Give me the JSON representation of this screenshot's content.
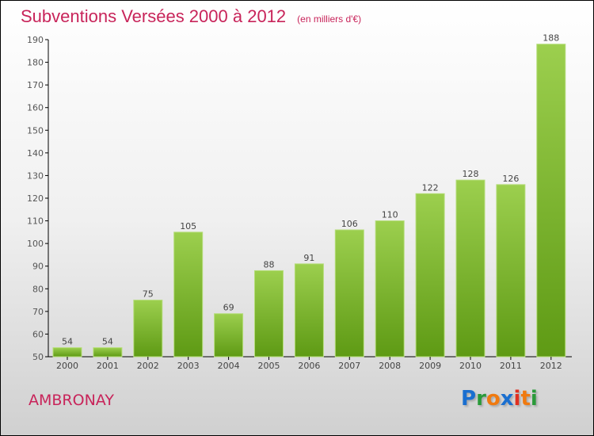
{
  "chart_data": {
    "type": "bar",
    "title": "Subventions Versées 2000 à 2012",
    "unit": "(en milliers d'€)",
    "categories": [
      "2000",
      "2001",
      "2002",
      "2003",
      "2004",
      "2005",
      "2006",
      "2007",
      "2008",
      "2009",
      "2010",
      "2011",
      "2012"
    ],
    "values": [
      54,
      54,
      75,
      105,
      69,
      88,
      91,
      106,
      110,
      122,
      128,
      126,
      188
    ],
    "ylim": [
      50,
      190
    ],
    "yticks": [
      50,
      60,
      70,
      80,
      90,
      100,
      110,
      120,
      130,
      140,
      150,
      160,
      170,
      180,
      190
    ],
    "xlabel": "",
    "ylabel": "",
    "grid": false
  },
  "commune": "AMBRONAY",
  "logo": {
    "letters": [
      "P",
      "r",
      "o",
      "x",
      "i",
      "t",
      "i"
    ],
    "colors": [
      "#1a6fd0",
      "#2a9a3a",
      "#f07a10",
      "#1a6fd0",
      "#e03020",
      "#f07a10",
      "#2a9a3a"
    ]
  },
  "colors": {
    "bar_top": "#9ccf4e",
    "bar_bottom": "#5e9a14",
    "accent": "#c8245a"
  }
}
